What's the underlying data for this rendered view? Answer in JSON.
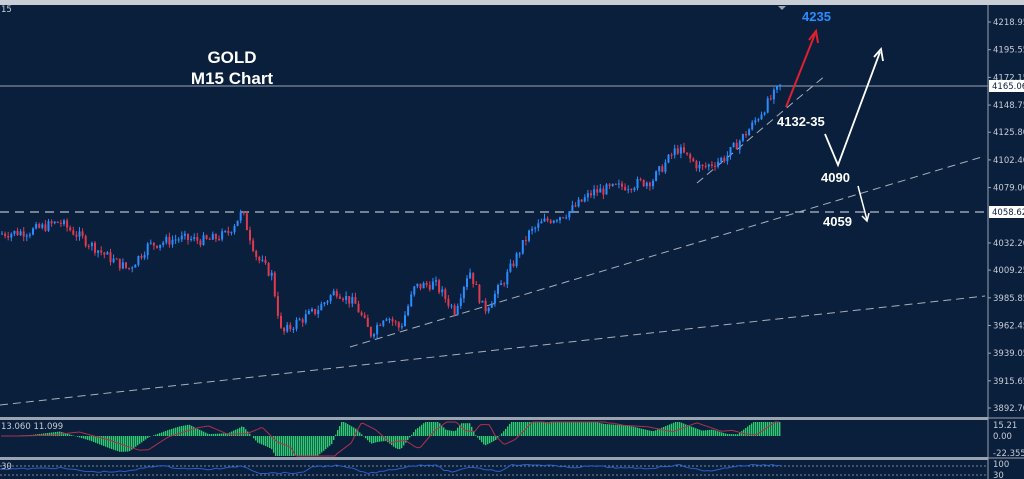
{
  "chart_title": {
    "line1": "GOLD",
    "line2": "M15 Chart"
  },
  "corner_label": "15",
  "colors": {
    "background": "#0a1f3c",
    "bull": "#2a8cff",
    "bear": "#e03a4e",
    "grid_line": "#9aa3b0",
    "macd_hist": "#2ecc71",
    "macd_signal": "#b0304a",
    "rsi_line": "#2a5fcc",
    "target_arrow": "#e0202e",
    "target_text": "#2a8cff"
  },
  "price_axis": {
    "ticks": [
      "4218.95",
      "4195.55",
      "4172.15",
      "4148.75",
      "4125.80",
      "4102.40",
      "4079.00",
      "4032.20",
      "4009.25",
      "3985.85",
      "3962.45",
      "3939.05",
      "3915.65",
      "3892.70"
    ],
    "current_price_tag": "4165.06",
    "level_tag": "4058.62"
  },
  "annotations": {
    "target": "4235",
    "support1": "4132-35",
    "support2": "4090",
    "support3": "4059"
  },
  "macd": {
    "label": "13.060 11.099",
    "axis": [
      "15.21",
      "0.00",
      "-22.355"
    ]
  },
  "rsi": {
    "axis": [
      "100",
      "30"
    ]
  },
  "chart_data": {
    "type": "candlestick",
    "title": "GOLD M15 Chart",
    "symbol": "GOLD",
    "timeframe": "M15",
    "ylim": [
      3880,
      4235
    ],
    "y_ticks": [
      4218.95,
      4195.55,
      4172.15,
      4148.75,
      4125.8,
      4102.4,
      4079.0,
      4058.62,
      4032.2,
      4009.25,
      3985.85,
      3962.45,
      3939.05,
      3915.65,
      3892.7
    ],
    "current_price": 4165.06,
    "horizontal_level": 4058.62,
    "approx_close_path": [
      {
        "x_frac": 0.0,
        "price": 4040
      },
      {
        "x_frac": 0.03,
        "price": 4042
      },
      {
        "x_frac": 0.06,
        "price": 4050
      },
      {
        "x_frac": 0.08,
        "price": 4038
      },
      {
        "x_frac": 0.11,
        "price": 4020
      },
      {
        "x_frac": 0.13,
        "price": 4010
      },
      {
        "x_frac": 0.15,
        "price": 4030
      },
      {
        "x_frac": 0.18,
        "price": 4036
      },
      {
        "x_frac": 0.21,
        "price": 4034
      },
      {
        "x_frac": 0.23,
        "price": 4040
      },
      {
        "x_frac": 0.245,
        "price": 4058
      },
      {
        "x_frac": 0.26,
        "price": 4020
      },
      {
        "x_frac": 0.275,
        "price": 4005
      },
      {
        "x_frac": 0.285,
        "price": 3955
      },
      {
        "x_frac": 0.3,
        "price": 3965
      },
      {
        "x_frac": 0.32,
        "price": 3975
      },
      {
        "x_frac": 0.34,
        "price": 3992
      },
      {
        "x_frac": 0.36,
        "price": 3980
      },
      {
        "x_frac": 0.375,
        "price": 3955
      },
      {
        "x_frac": 0.39,
        "price": 3972
      },
      {
        "x_frac": 0.405,
        "price": 3960
      },
      {
        "x_frac": 0.42,
        "price": 3995
      },
      {
        "x_frac": 0.44,
        "price": 3998
      },
      {
        "x_frac": 0.46,
        "price": 3975
      },
      {
        "x_frac": 0.475,
        "price": 4010
      },
      {
        "x_frac": 0.49,
        "price": 3975
      },
      {
        "x_frac": 0.51,
        "price": 4000
      },
      {
        "x_frac": 0.535,
        "price": 4040
      },
      {
        "x_frac": 0.55,
        "price": 4050
      },
      {
        "x_frac": 0.575,
        "price": 4058
      },
      {
        "x_frac": 0.6,
        "price": 4075
      },
      {
        "x_frac": 0.63,
        "price": 4080
      },
      {
        "x_frac": 0.66,
        "price": 4085
      },
      {
        "x_frac": 0.685,
        "price": 4112
      },
      {
        "x_frac": 0.71,
        "price": 4095
      },
      {
        "x_frac": 0.735,
        "price": 4105
      },
      {
        "x_frac": 0.76,
        "price": 4130
      },
      {
        "x_frac": 0.775,
        "price": 4148
      },
      {
        "x_frac": 0.79,
        "price": 4165
      }
    ],
    "trendlines": [
      {
        "name": "short-term rising support",
        "from": [
          0.68,
          4079
        ],
        "to": [
          0.81,
          4160
        ]
      },
      {
        "name": "medium rising support",
        "from": [
          0.34,
          3945
        ],
        "to": [
          0.96,
          4104
        ]
      },
      {
        "name": "long rising support",
        "from": [
          0.0,
          3905
        ],
        "to": [
          0.96,
          3988
        ]
      }
    ],
    "annotations": [
      {
        "text": "4235",
        "type": "target",
        "arrow": "red up"
      },
      {
        "text": "4132-35",
        "type": "support"
      },
      {
        "text": "4090",
        "type": "support"
      },
      {
        "text": "4059",
        "type": "support"
      }
    ],
    "indicators": [
      {
        "name": "MACD",
        "values_label": "13.060 11.099",
        "axis": [
          15.21,
          0.0,
          -22.355
        ]
      },
      {
        "name": "RSI",
        "axis_levels": [
          100,
          30
        ]
      }
    ]
  }
}
